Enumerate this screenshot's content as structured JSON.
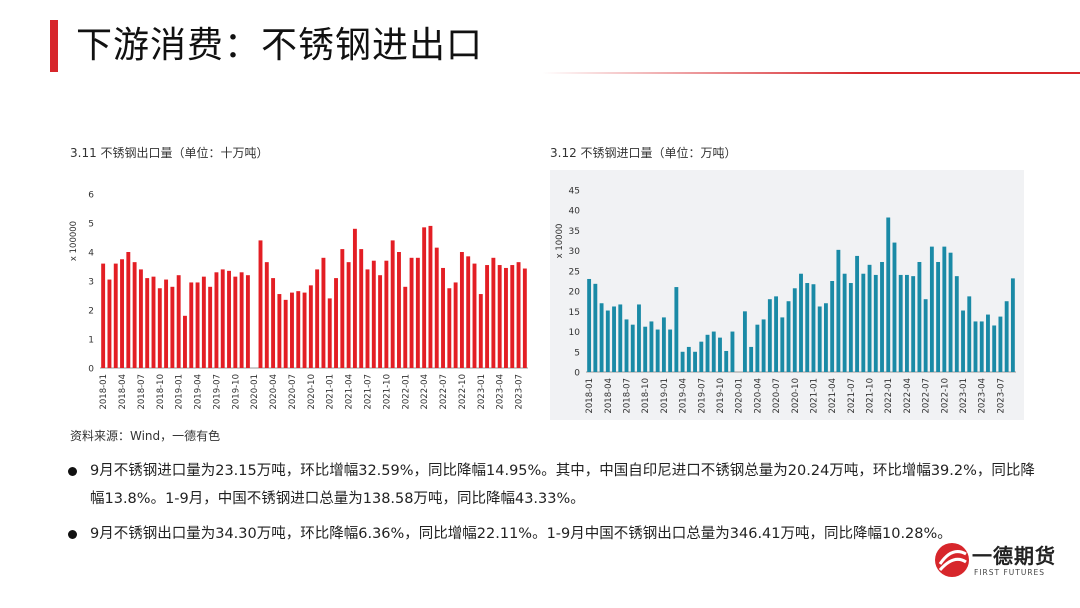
{
  "page": {
    "title": "下游消费：不锈钢进出口",
    "source": "资料来源：Wind，一德有色",
    "accent_color": "#d7262b"
  },
  "bullets": [
    "9月不锈钢进口量为23.15万吨，环比增幅32.59%，同比降幅14.95%。其中，中国自印尼进口不锈钢总量为20.24万吨，环比增幅39.2%，同比降幅13.8%。1-9月，中国不锈钢进口总量为138.58万吨，同比降幅43.33%。",
    "9月不锈钢出口量为34.30万吨，环比降幅6.36%，同比增幅22.11%。1-9月中国不锈钢出口总量为346.41万吨，同比降幅10.28%。"
  ],
  "logo": {
    "name": "一德期货",
    "subtitle": "FIRST FUTURES",
    "icon": "first-futures-logo-icon"
  },
  "chart_data": [
    {
      "type": "bar",
      "caption": "3.11 不锈钢出口量（单位：十万吨）",
      "ylabel": "x 100000",
      "ylim": [
        0,
        6
      ],
      "yticks": [
        0,
        1,
        2,
        3,
        4,
        5,
        6
      ],
      "bar_color": "#e31e24",
      "start": "2018-01",
      "tick_labels": [
        "2018-01",
        "2018-04",
        "2018-07",
        "2018-10",
        "2019-01",
        "2019-04",
        "2019-07",
        "2019-10",
        "2020-01",
        "2020-04",
        "2020-07",
        "2020-10",
        "2021-01",
        "2021-04",
        "2021-07",
        "2021-10",
        "2022-01",
        "2022-04",
        "2022-07",
        "2022-10",
        "2023-01",
        "2023-04",
        "2023-07"
      ],
      "values": [
        3.6,
        3.05,
        3.6,
        3.75,
        4.0,
        3.65,
        3.4,
        3.1,
        3.15,
        2.75,
        3.05,
        2.8,
        3.2,
        1.8,
        2.95,
        2.95,
        3.15,
        2.8,
        3.3,
        3.4,
        3.35,
        3.15,
        3.3,
        3.2,
        null,
        4.4,
        3.65,
        3.1,
        2.55,
        2.35,
        2.6,
        2.65,
        2.6,
        2.85,
        3.4,
        3.8,
        2.4,
        3.1,
        4.1,
        3.65,
        4.8,
        4.1,
        3.4,
        3.7,
        3.2,
        3.7,
        4.4,
        4.0,
        2.8,
        3.8,
        3.8,
        4.85,
        4.9,
        4.15,
        3.45,
        2.75,
        2.95,
        4.0,
        3.85,
        3.6,
        2.55,
        3.55,
        3.8,
        3.55,
        3.45,
        3.55,
        3.65,
        3.43
      ]
    },
    {
      "type": "bar",
      "caption": "3.12 不锈钢进口量（单位：万吨）",
      "ylabel": "x 10000",
      "ylim": [
        0,
        45
      ],
      "yticks": [
        0,
        5,
        10,
        15,
        20,
        25,
        30,
        35,
        40,
        45
      ],
      "bar_color": "#1a8aa6",
      "start": "2018-01",
      "tick_labels": [
        "2018-01",
        "2018-04",
        "2018-07",
        "2018-10",
        "2019-01",
        "2019-04",
        "2019-07",
        "2019-10",
        "2020-01",
        "2020-04",
        "2020-07",
        "2020-10",
        "2021-01",
        "2021-04",
        "2021-07",
        "2021-10",
        "2022-01",
        "2022-04",
        "2022-07",
        "2022-10",
        "2023-01",
        "2023-04",
        "2023-07"
      ],
      "values": [
        23,
        21.8,
        17,
        15.2,
        16.2,
        16.7,
        13,
        11.7,
        16.7,
        11.2,
        12.5,
        10.5,
        13.5,
        10.5,
        21,
        5,
        6.2,
        5,
        7.5,
        9.2,
        10,
        8.5,
        5.2,
        10,
        null,
        15,
        6.2,
        11.7,
        13,
        18,
        18.7,
        13.5,
        17.5,
        20.7,
        24.3,
        22,
        21.7,
        16.2,
        17,
        22.5,
        30.2,
        24.3,
        22,
        28.7,
        24.3,
        26.5,
        24,
        27.2,
        38.2,
        32,
        24,
        24,
        23.7,
        27.2,
        18,
        31,
        27.2,
        31,
        29.5,
        23.7,
        15.2,
        18.7,
        12.5,
        12.5,
        14.2,
        11.5,
        13.7,
        17.5,
        23.15
      ]
    }
  ]
}
